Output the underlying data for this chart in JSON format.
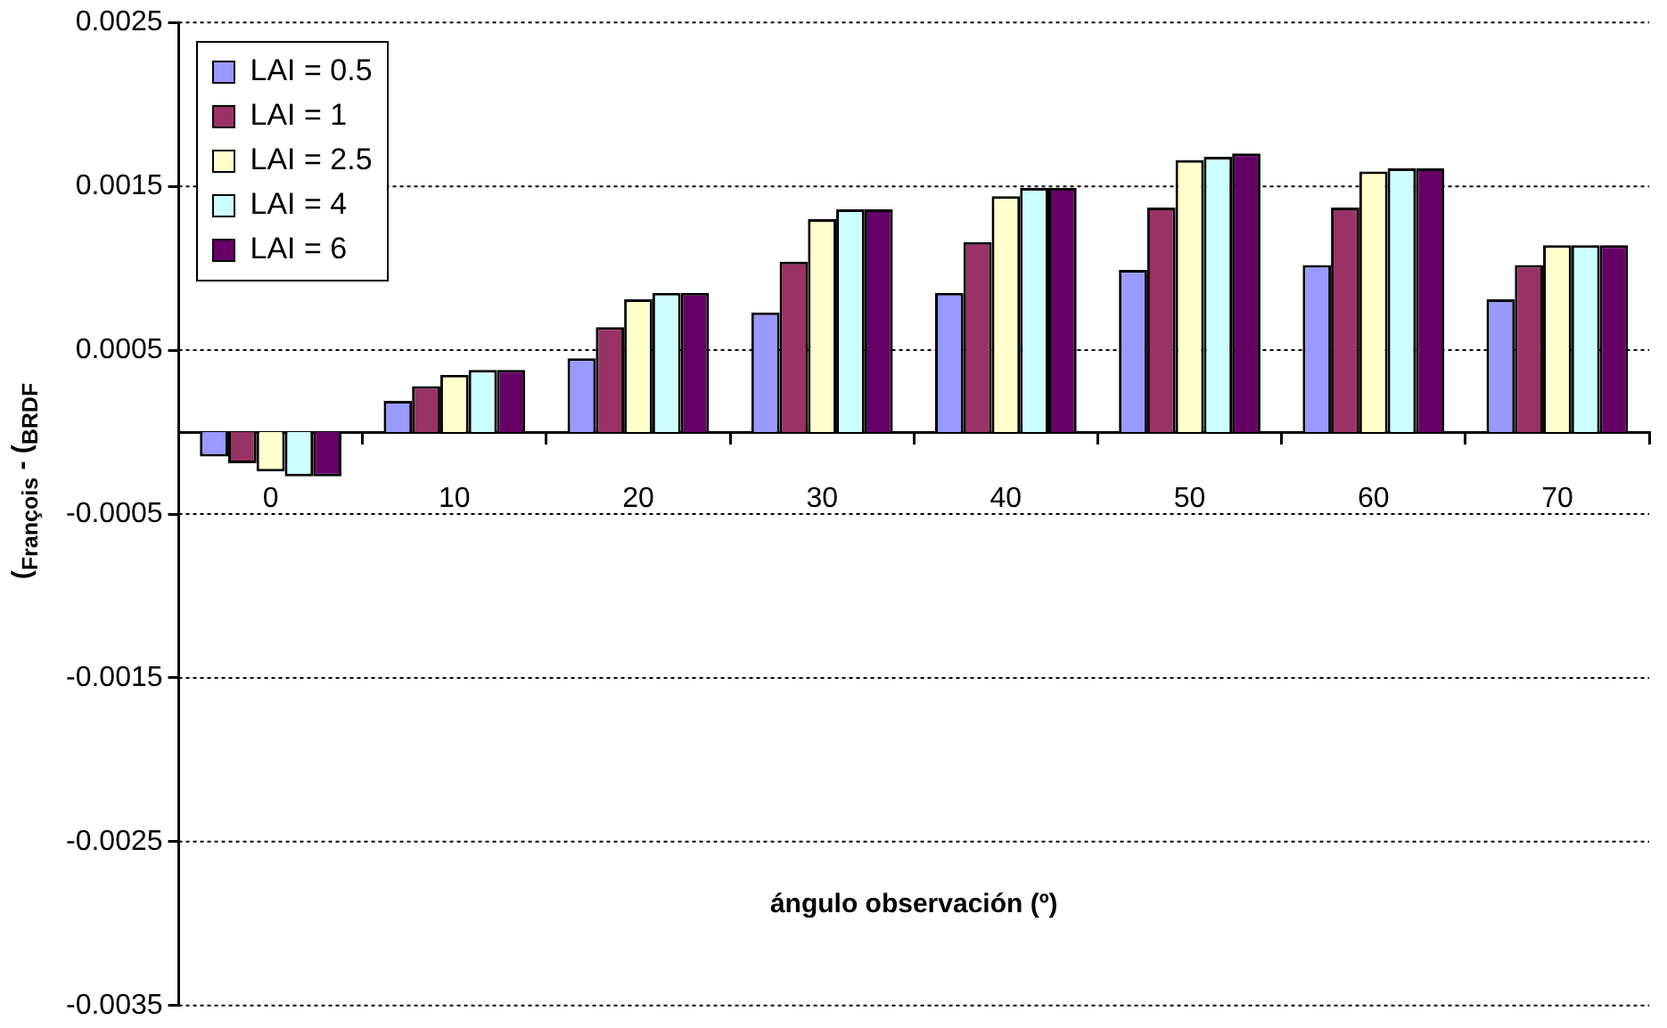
{
  "chart_data": {
    "type": "bar",
    "xlabel": "ángulo observación (º)",
    "ylabel": "($_{François}$ - ($_{BRDF}$",
    "categories": [
      "0",
      "10",
      "20",
      "30",
      "40",
      "50",
      "60",
      "70"
    ],
    "series": [
      {
        "name": "LAI = 0.5",
        "color": "#9999ff",
        "values": [
          -0.00015,
          0.00019,
          0.00045,
          0.00073,
          0.00085,
          0.00099,
          0.00102,
          0.00081
        ]
      },
      {
        "name": "LAI = 1",
        "color": "#993366",
        "values": [
          -0.00019,
          0.00028,
          0.00064,
          0.00104,
          0.00116,
          0.00137,
          0.00137,
          0.00102
        ]
      },
      {
        "name": "LAI = 2.5",
        "color": "#ffffcc",
        "values": [
          -0.00024,
          0.00035,
          0.00081,
          0.0013,
          0.00144,
          0.00166,
          0.00159,
          0.00114
        ]
      },
      {
        "name": "LAI = 4",
        "color": "#ccffff",
        "values": [
          -0.00027,
          0.00038,
          0.00085,
          0.00136,
          0.00149,
          0.00168,
          0.00161,
          0.00114
        ]
      },
      {
        "name": "LAI = 6",
        "color": "#660066",
        "values": [
          -0.00027,
          0.00038,
          0.00085,
          0.00136,
          0.00149,
          0.0017,
          0.00161,
          0.00114
        ]
      }
    ],
    "ylim": [
      -0.0035,
      0.0025
    ],
    "yticks": [
      -0.0035,
      -0.0025,
      -0.0015,
      -0.0005,
      0.0005,
      0.0015,
      0.0025
    ],
    "grid": "y",
    "legend": "top left"
  }
}
